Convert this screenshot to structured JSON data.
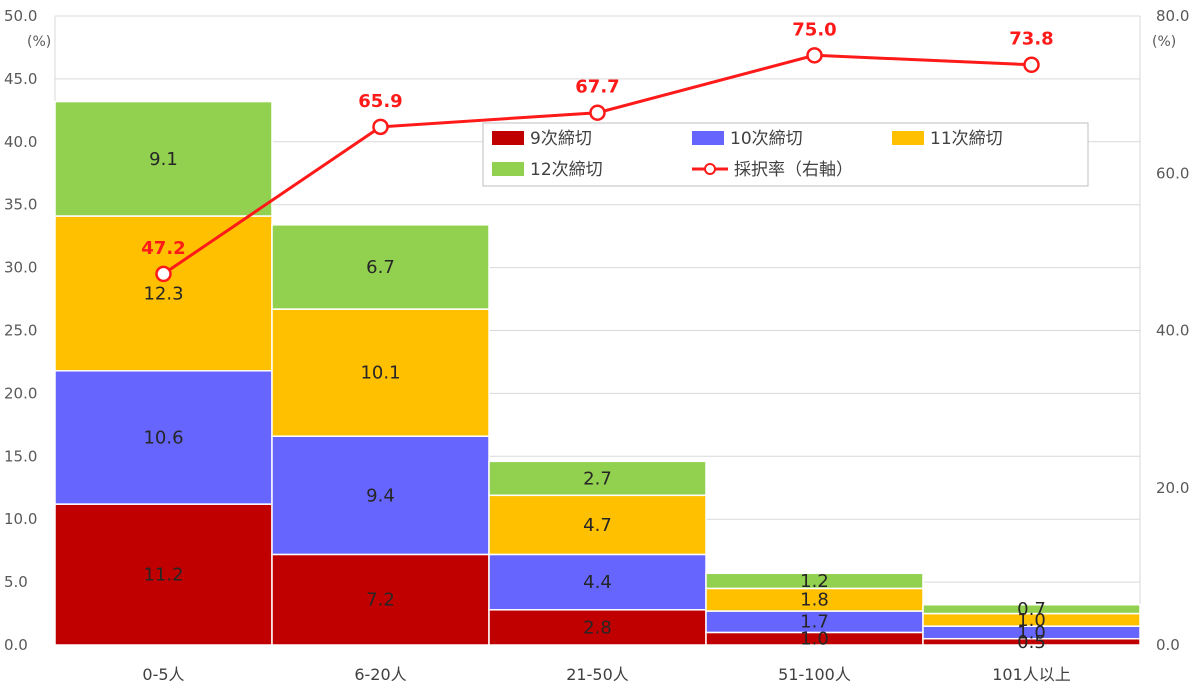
{
  "chart_data": {
    "type": "bar",
    "stacked": true,
    "categories": [
      "0-5人",
      "6-20人",
      "21-50人",
      "51-100人",
      "101人以上"
    ],
    "series": [
      {
        "name": "9次締切",
        "color": "#c00000",
        "values": [
          11.2,
          7.2,
          2.8,
          1.0,
          0.5
        ]
      },
      {
        "name": "10次締切",
        "color": "#6666ff",
        "values": [
          10.6,
          9.4,
          4.4,
          1.7,
          1.0
        ]
      },
      {
        "name": "11次締切",
        "color": "#ffc000",
        "values": [
          12.3,
          10.1,
          4.7,
          1.8,
          1.0
        ]
      },
      {
        "name": "12次締切",
        "color": "#92d050",
        "values": [
          9.1,
          6.7,
          2.7,
          1.2,
          0.7
        ]
      }
    ],
    "line": {
      "name": "採択率（右軸）",
      "color": "#ff1a1a",
      "values": [
        47.2,
        65.9,
        67.7,
        75.0,
        73.8
      ]
    },
    "y_left": {
      "min": 0,
      "max": 50,
      "step": 5,
      "ticks": [
        "0.0",
        "5.0",
        "10.0",
        "15.0",
        "20.0",
        "25.0",
        "30.0",
        "35.0",
        "40.0",
        "45.0",
        "50.0"
      ],
      "unit": "(%)"
    },
    "y_right": {
      "min": 0,
      "max": 80,
      "step": 20,
      "ticks": [
        "0.0",
        "20.0",
        "40.0",
        "60.0",
        "80.0"
      ],
      "unit": "(%)"
    },
    "grid": true,
    "legend_position": "top-right"
  }
}
